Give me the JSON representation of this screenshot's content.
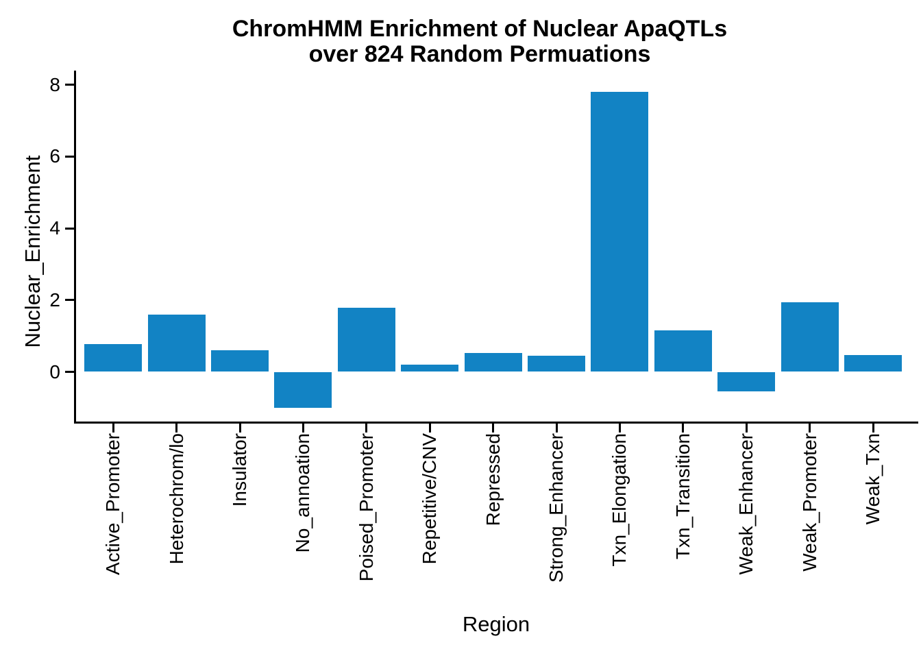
{
  "chart_data": {
    "type": "bar",
    "title_lines": [
      "ChromHMM Enrichment of Nuclear ApaQTLs",
      "over 824 Random Permuations"
    ],
    "title": "ChromHMM Enrichment of Nuclear ApaQTLs over 824 Random Permuations",
    "xlabel": "Region",
    "ylabel": "Nuclear_Enrichment",
    "categories": [
      "Active_Promoter",
      "Heterochrom/lo",
      "Insulator",
      "No_annoation",
      "Poised_Promoter",
      "Repetitive/CNV",
      "Repressed",
      "Strong_Enhancer",
      "Txn_Elongation",
      "Txn_Transition",
      "Weak_Enhancer",
      "Weak_Promoter",
      "Weak_Txn"
    ],
    "values": [
      0.78,
      1.6,
      0.6,
      -1.0,
      1.78,
      0.2,
      0.52,
      0.45,
      7.8,
      1.16,
      -0.55,
      1.93,
      0.46
    ],
    "yticks": [
      "0",
      "2",
      "4",
      "6",
      "8"
    ],
    "ylim": [
      -1.4,
      8.35
    ],
    "grid": false,
    "legend": "none",
    "bar_color": "#1283c4",
    "axis_color": "#000000",
    "background_color": "#ffffff"
  }
}
